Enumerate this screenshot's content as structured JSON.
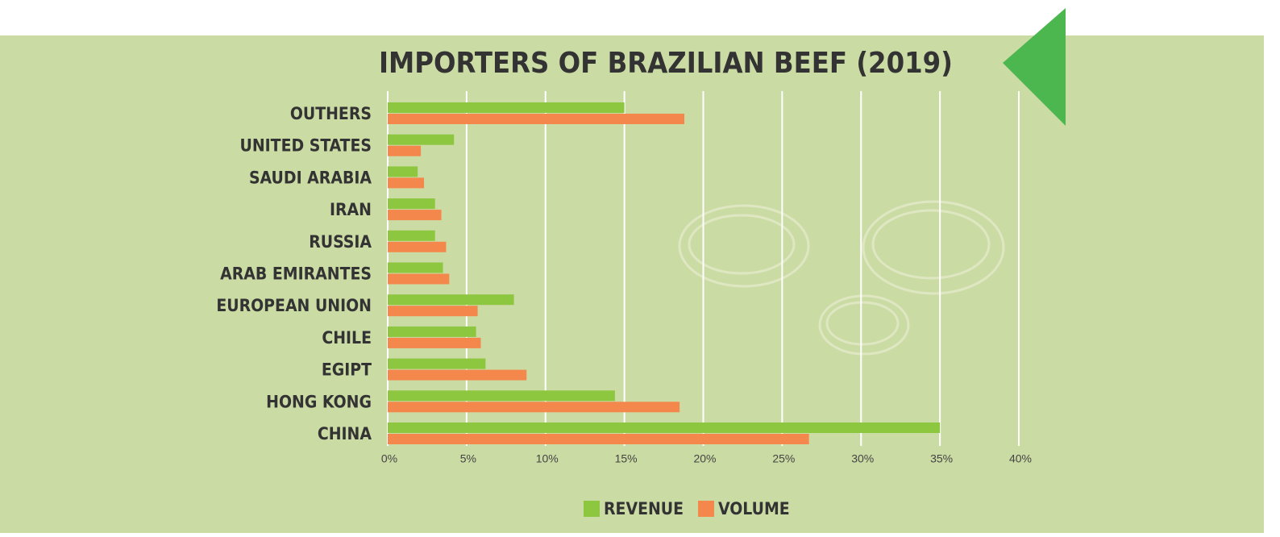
{
  "chart_data": {
    "type": "hbar",
    "title": "IMPORTERS OF BRAZILIAN BEEF (2019)",
    "categories": [
      "OUTHERS",
      "UNITED STATES",
      "SAUDI ARABIA",
      "IRAN",
      "RUSSIA",
      "ARAB EMIRANTES",
      "EUROPEAN UNION",
      "CHILE",
      "EGIPT",
      "HONG KONG",
      "CHINA"
    ],
    "series": [
      {
        "name": "REVENUE",
        "color": "#8dc63f",
        "values": [
          15.0,
          4.2,
          1.9,
          3.0,
          3.0,
          3.5,
          8.0,
          5.6,
          6.2,
          14.4,
          35.0
        ]
      },
      {
        "name": "VOLUME",
        "color": "#f4874b",
        "values": [
          18.8,
          2.1,
          2.3,
          3.4,
          3.7,
          3.9,
          5.7,
          5.9,
          8.8,
          18.5,
          26.7
        ]
      }
    ],
    "xlim": [
      0,
      40
    ],
    "xticks": [
      {
        "value": 0,
        "label": "0%"
      },
      {
        "value": 5,
        "label": "5%"
      },
      {
        "value": 10,
        "label": "10%"
      },
      {
        "value": 15,
        "label": "15%"
      },
      {
        "value": 20,
        "label": "20%"
      },
      {
        "value": 25,
        "label": "25%"
      },
      {
        "value": 30,
        "label": "30%"
      },
      {
        "value": 35,
        "label": "35%"
      },
      {
        "value": 40,
        "label": "40%"
      }
    ],
    "grid": true
  }
}
